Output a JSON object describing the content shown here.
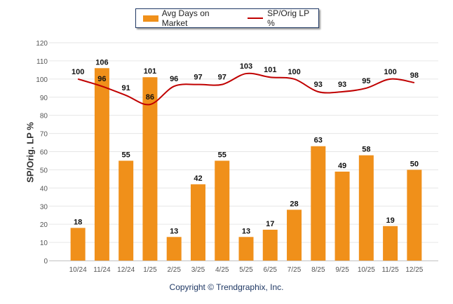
{
  "chart_data": {
    "type": "bar",
    "title": "",
    "xlabel": "",
    "ylabel": "SP/Orig. LP %",
    "ylim": [
      0,
      120
    ],
    "yticks": [
      0,
      10,
      20,
      30,
      40,
      50,
      60,
      70,
      80,
      90,
      100,
      110,
      120
    ],
    "grid": true,
    "legend_position": "top-center",
    "categories": [
      "10/24",
      "11/24",
      "12/24",
      "1/25",
      "2/25",
      "3/25",
      "4/25",
      "5/25",
      "6/25",
      "7/25",
      "8/25",
      "9/25",
      "10/25",
      "11/25",
      "12/25"
    ],
    "series": [
      {
        "name": "Avg Days on Market",
        "type": "bar",
        "color": "#f0901a",
        "values": [
          18,
          106,
          55,
          101,
          13,
          42,
          55,
          13,
          17,
          28,
          63,
          49,
          58,
          19,
          50
        ]
      },
      {
        "name": "SP/Orig LP %",
        "type": "line",
        "color": "#c00000",
        "values": [
          100,
          96,
          91,
          86,
          96,
          97,
          97,
          103,
          101,
          100,
          93,
          93,
          95,
          100,
          98
        ]
      }
    ]
  },
  "footer": {
    "copyright": "Copyright © Trendgraphix, Inc."
  }
}
